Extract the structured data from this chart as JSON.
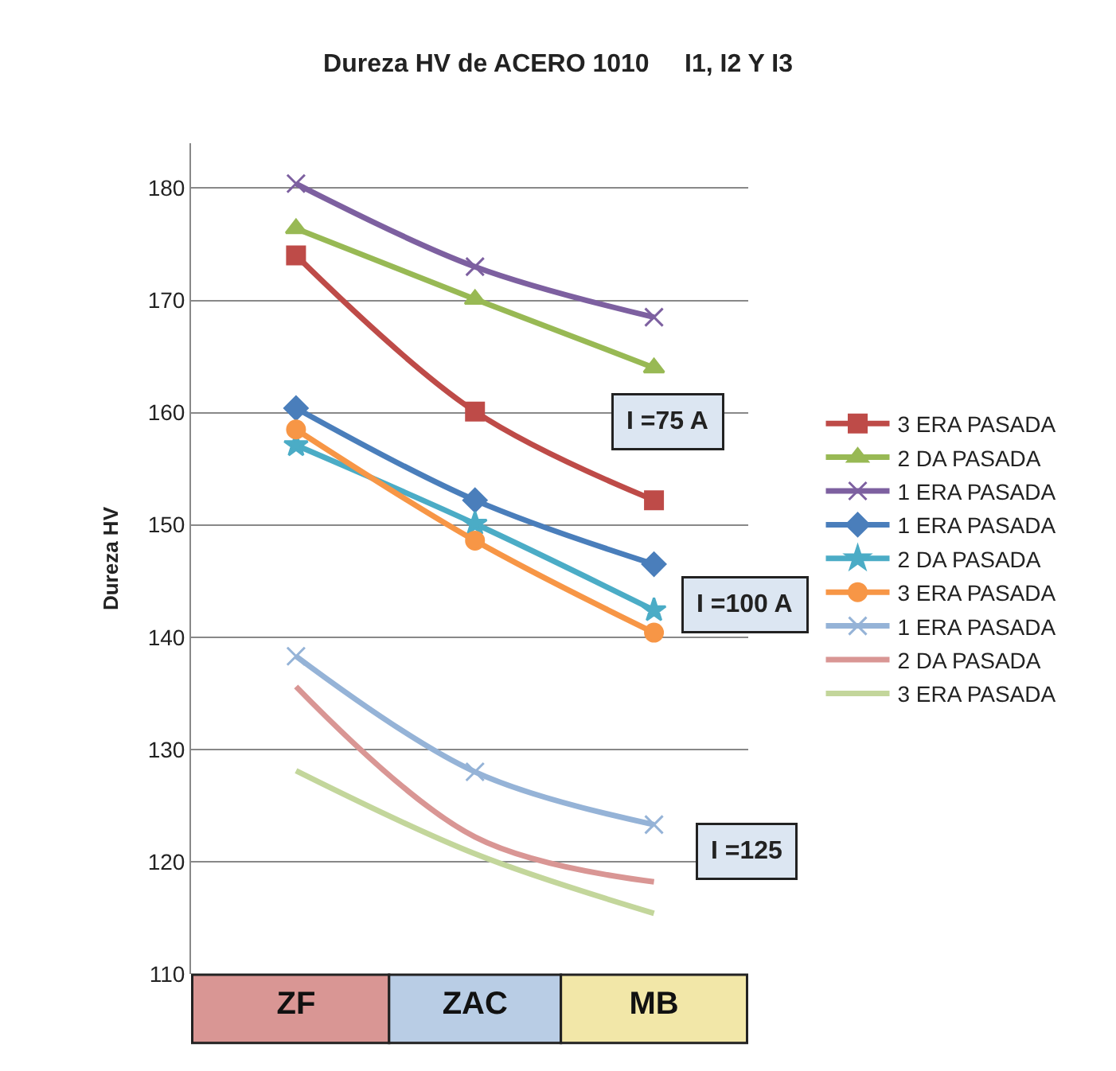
{
  "chart_data": {
    "type": "line",
    "title": "Dureza HV de ACERO 1010     I1, I2 Y I3",
    "ylabel": "Dureza HV",
    "categories": [
      "ZF",
      "ZAC",
      "MB"
    ],
    "series": [
      {
        "name": "3 ERA PASADA",
        "color": "#be4b48",
        "marker": "square",
        "values": [
          174,
          160.1,
          152.2
        ]
      },
      {
        "name": "2 DA PASADA",
        "color": "#98b954",
        "marker": "triangle",
        "values": [
          176.4,
          170.1,
          164
        ]
      },
      {
        "name": "1 ERA PASADA",
        "color": "#7d60a0",
        "marker": "cross",
        "values": [
          180.4,
          173,
          168.5
        ]
      },
      {
        "name": "1 ERA PASADA",
        "color": "#4a7ebb",
        "marker": "diamond",
        "values": [
          160.4,
          152.2,
          146.5
        ]
      },
      {
        "name": "2 DA PASADA",
        "color": "#4bacc6",
        "marker": "star",
        "values": [
          157.1,
          150.1,
          142.4
        ]
      },
      {
        "name": "3 ERA PASADA",
        "color": "#f79646",
        "marker": "circle",
        "values": [
          158.5,
          148.6,
          140.4
        ]
      },
      {
        "name": "1 ERA PASADA",
        "color": "#95b3d7",
        "marker": "cross",
        "values": [
          138.3,
          128,
          123.3
        ]
      },
      {
        "name": "2 DA PASADA",
        "color": "#d99694",
        "marker": "none",
        "values": [
          135.6,
          122.2,
          118.2
        ]
      },
      {
        "name": "3 ERA PASADA",
        "color": "#c3d69b",
        "marker": "none",
        "values": [
          128.1,
          120.7,
          115.4
        ]
      }
    ],
    "ylim": [
      110,
      184
    ],
    "yticks": [
      110,
      120,
      130,
      140,
      150,
      160,
      170,
      180
    ],
    "grid": "y",
    "legend": "right",
    "annotations": [
      "I =75 A",
      "I =100 A",
      "I =125"
    ]
  }
}
